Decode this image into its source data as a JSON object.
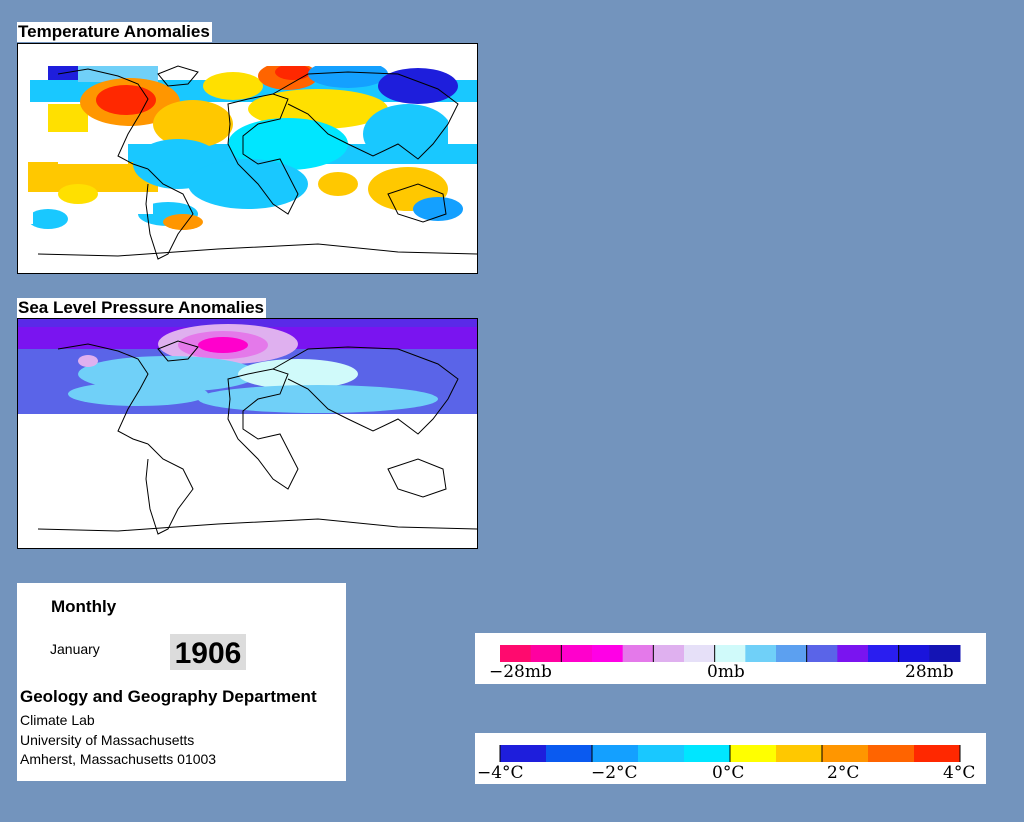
{
  "maps": {
    "temperature": {
      "title": "Temperature Anomalies"
    },
    "pressure": {
      "title": "Sea Level Pressure Anomalies"
    }
  },
  "info": {
    "mode": "Monthly",
    "month": "January",
    "year": "1906",
    "department": "Geology and Geography Department",
    "address_lines": [
      "Climate Lab",
      "University of Massachusetts",
      "Amherst, Massachusetts 01003"
    ]
  },
  "legends": {
    "pressure": {
      "ticks": [
        "−28mb",
        "0mb",
        "28mb"
      ],
      "colors": [
        "#ff0a6e",
        "#ff00a0",
        "#ff00cc",
        "#ff00e6",
        "#e479ea",
        "#dfb0ef",
        "#e6e0f8",
        "#d0fafa",
        "#70d0f8",
        "#5ca0f0",
        "#5a64e8",
        "#7a14f0",
        "#2a1ef0",
        "#1a14dc",
        "#1414b4"
      ]
    },
    "temperature": {
      "ticks": [
        "−4°C",
        "−2°C",
        "0°C",
        "2°C",
        "4°C"
      ],
      "colors": [
        "#1e1edc",
        "#0a5af0",
        "#14a0ff",
        "#19c8ff",
        "#00e6ff",
        "#ffff00",
        "#ffc800",
        "#ff9600",
        "#ff6400",
        "#ff2800"
      ]
    }
  }
}
